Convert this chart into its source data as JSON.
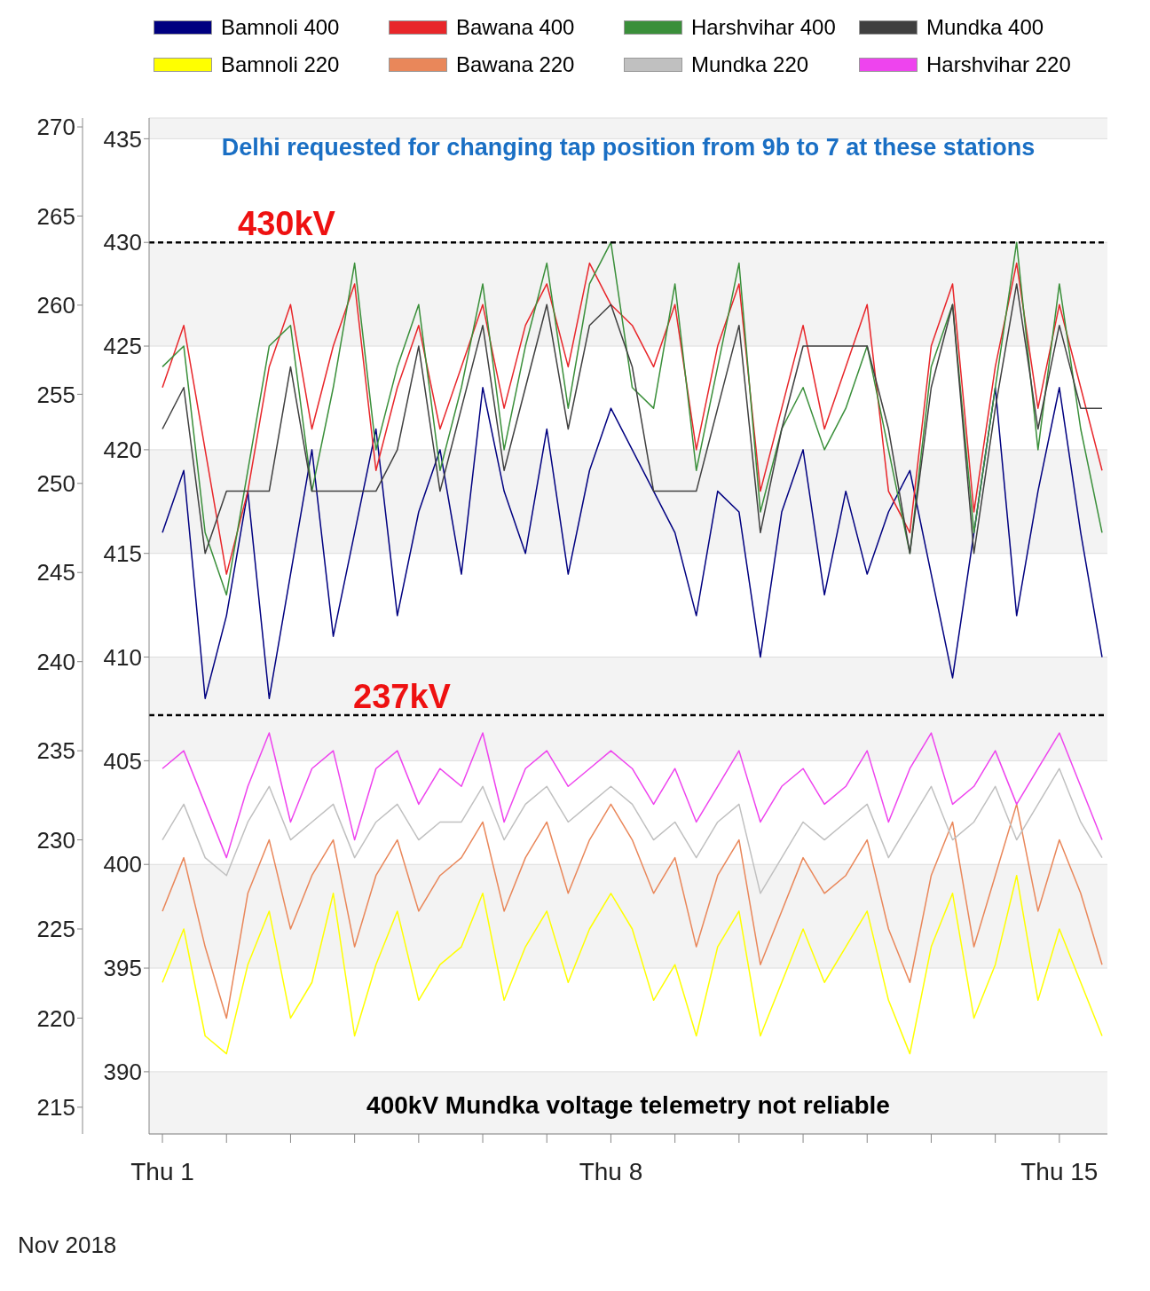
{
  "chart_data": {
    "type": "line",
    "xlabel": "Nov 2018",
    "annotations": [
      "Delhi requested for changing tap position from 9b to 7 at these stations",
      "400kV Mundka voltage telemetry not reliable"
    ],
    "legend": "top",
    "grid": "y",
    "xlim": [
      "2018-10-31T19:00",
      "2018-11-15T18:00"
    ],
    "xticks": [
      {
        "value": "2018-11-01",
        "label": "Thu 1"
      },
      {
        "value": "2018-11-02",
        "label": null
      },
      {
        "value": "2018-11-03",
        "label": null
      },
      {
        "value": "2018-11-04",
        "label": null
      },
      {
        "value": "2018-11-05",
        "label": null
      },
      {
        "value": "2018-11-06",
        "label": null
      },
      {
        "value": "2018-11-07",
        "label": null
      },
      {
        "value": "2018-11-08",
        "label": "Thu 8"
      },
      {
        "value": "2018-11-09",
        "label": null
      },
      {
        "value": "2018-11-10",
        "label": null
      },
      {
        "value": "2018-11-11",
        "label": null
      },
      {
        "value": "2018-11-12",
        "label": null
      },
      {
        "value": "2018-11-13",
        "label": null
      },
      {
        "value": "2018-11-14",
        "label": null
      },
      {
        "value": "2018-11-15",
        "label": "Thu 15"
      }
    ],
    "ylim": [
      387,
      436
    ],
    "yticks": [
      390,
      395,
      400,
      405,
      410,
      415,
      420,
      425,
      430,
      435
    ],
    "y2lim": [
      213.5,
      270.5
    ],
    "y2ticks": [
      215,
      220,
      225,
      230,
      235,
      240,
      245,
      250,
      255,
      260,
      265,
      270
    ],
    "ref_lines": [
      {
        "axis": "y",
        "value": 430,
        "label": "430kV",
        "color": "#000000",
        "line_style": "dashed"
      },
      {
        "axis": "y2",
        "value": 237,
        "label": "237kV",
        "color": "#000000",
        "line_style": "dashed"
      }
    ],
    "x": [
      "2018-11-01T00:00",
      "2018-11-01T08:00",
      "2018-11-01T16:00",
      "2018-11-02T00:00",
      "2018-11-02T08:00",
      "2018-11-02T16:00",
      "2018-11-03T00:00",
      "2018-11-03T08:00",
      "2018-11-03T16:00",
      "2018-11-04T00:00",
      "2018-11-04T08:00",
      "2018-11-04T16:00",
      "2018-11-05T00:00",
      "2018-11-05T08:00",
      "2018-11-05T16:00",
      "2018-11-06T00:00",
      "2018-11-06T08:00",
      "2018-11-06T16:00",
      "2018-11-07T00:00",
      "2018-11-07T08:00",
      "2018-11-07T16:00",
      "2018-11-08T00:00",
      "2018-11-08T08:00",
      "2018-11-08T16:00",
      "2018-11-09T00:00",
      "2018-11-09T08:00",
      "2018-11-09T16:00",
      "2018-11-10T00:00",
      "2018-11-10T08:00",
      "2018-11-10T16:00",
      "2018-11-11T00:00",
      "2018-11-11T08:00",
      "2018-11-11T16:00",
      "2018-11-12T00:00",
      "2018-11-12T08:00",
      "2018-11-12T16:00",
      "2018-11-13T00:00",
      "2018-11-13T08:00",
      "2018-11-13T16:00",
      "2018-11-14T00:00",
      "2018-11-14T08:00",
      "2018-11-14T16:00",
      "2018-11-15T00:00",
      "2018-11-15T08:00",
      "2018-11-15T16:00"
    ],
    "series": [
      {
        "name": "Bamnoli 400",
        "color": "#000080",
        "values": [
          416,
          419,
          408,
          412,
          418,
          408,
          414,
          420,
          411,
          416,
          421,
          412,
          417,
          420,
          414,
          423,
          418,
          415,
          421,
          414,
          419,
          422,
          420,
          418,
          416,
          412,
          418,
          417,
          410,
          417,
          420,
          413,
          418,
          414,
          417,
          419,
          414,
          409,
          416,
          423,
          412,
          418,
          423,
          416,
          410
        ]
      },
      {
        "name": "Bawana 400",
        "color": "#e8262a",
        "values": [
          423,
          426,
          420,
          414,
          418,
          424,
          427,
          421,
          425,
          428,
          419,
          423,
          426,
          421,
          424,
          427,
          422,
          426,
          428,
          424,
          429,
          427,
          426,
          424,
          427,
          420,
          425,
          428,
          418,
          422,
          426,
          421,
          424,
          427,
          418,
          416,
          425,
          428,
          417,
          424,
          429,
          422,
          427,
          423,
          419
        ]
      },
      {
        "name": "Harshvihar 400",
        "color": "#3a8f3a",
        "values": [
          424,
          425,
          416,
          413,
          419,
          425,
          426,
          418,
          423,
          429,
          420,
          424,
          427,
          419,
          423,
          428,
          420,
          425,
          429,
          422,
          428,
          430,
          423,
          422,
          428,
          419,
          424,
          429,
          417,
          421,
          423,
          420,
          422,
          425,
          420,
          415,
          424,
          427,
          416,
          423,
          430,
          420,
          428,
          421,
          416
        ]
      },
      {
        "name": "Mundka 400",
        "color": "#404040",
        "values": [
          421,
          423,
          415,
          418,
          418,
          418,
          424,
          418,
          418,
          418,
          418,
          420,
          425,
          418,
          422,
          426,
          419,
          423,
          427,
          421,
          426,
          427,
          424,
          418,
          418,
          418,
          422,
          426,
          416,
          421,
          425,
          425,
          425,
          425,
          421,
          415,
          423,
          427,
          415,
          422,
          428,
          421,
          426,
          422,
          422
        ]
      },
      {
        "name": "Bamnoli 220",
        "color": "#ffff00",
        "axis": "y2",
        "values": [
          222,
          225,
          219,
          218,
          223,
          226,
          220,
          222,
          227,
          219,
          223,
          226,
          221,
          223,
          224,
          227,
          221,
          224,
          226,
          222,
          225,
          227,
          225,
          221,
          223,
          219,
          224,
          226,
          219,
          222,
          225,
          222,
          224,
          226,
          221,
          218,
          224,
          227,
          220,
          223,
          228,
          221,
          225,
          222,
          219
        ]
      },
      {
        "name": "Bawana 220",
        "color": "#e9875a",
        "axis": "y2",
        "values": [
          226,
          229,
          224,
          220,
          227,
          230,
          225,
          228,
          230,
          224,
          228,
          230,
          226,
          228,
          229,
          231,
          226,
          229,
          231,
          227,
          230,
          232,
          230,
          227,
          229,
          224,
          228,
          230,
          223,
          226,
          229,
          227,
          228,
          230,
          225,
          222,
          228,
          231,
          224,
          228,
          232,
          226,
          230,
          227,
          223
        ]
      },
      {
        "name": "Mundka 220",
        "color": "#c0c0c0",
        "axis": "y2",
        "values": [
          230,
          232,
          229,
          228,
          231,
          233,
          230,
          231,
          232,
          229,
          231,
          232,
          230,
          231,
          231,
          233,
          230,
          232,
          233,
          231,
          232,
          233,
          232,
          230,
          231,
          229,
          231,
          232,
          227,
          229,
          231,
          230,
          231,
          232,
          229,
          231,
          233,
          230,
          231,
          233,
          230,
          232,
          234,
          231,
          229
        ]
      },
      {
        "name": "Harshvihar 220",
        "color": "#ee44ee",
        "axis": "y2",
        "values": [
          234,
          235,
          232,
          229,
          233,
          236,
          231,
          234,
          235,
          230,
          234,
          235,
          232,
          234,
          233,
          236,
          231,
          234,
          235,
          233,
          234,
          235,
          234,
          232,
          234,
          231,
          233,
          235,
          231,
          233,
          234,
          232,
          233,
          235,
          231,
          234,
          236,
          232,
          233,
          235,
          232,
          234,
          236,
          233,
          230
        ]
      }
    ]
  }
}
